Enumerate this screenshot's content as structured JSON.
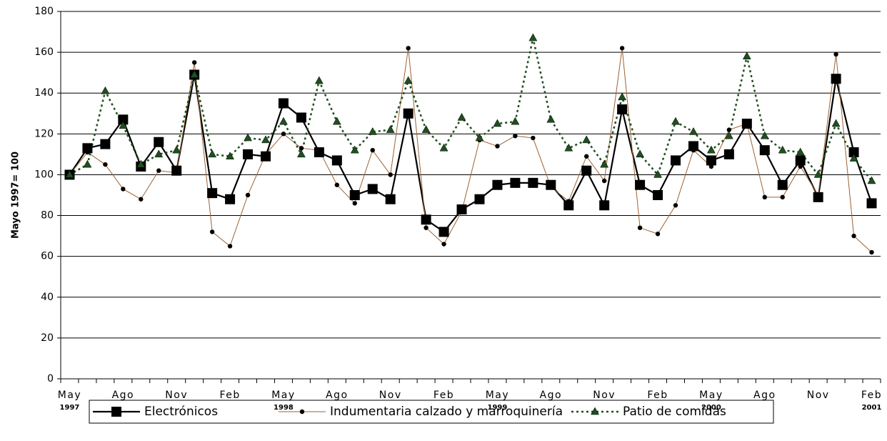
{
  "chart_data": {
    "type": "line",
    "y_label": "Mayo 1997= 100",
    "categories": [
      "May",
      null,
      null,
      "Ago",
      null,
      null,
      "Nov",
      null,
      null,
      "Feb",
      null,
      null,
      "May",
      null,
      null,
      "Ago",
      null,
      null,
      "Nov",
      null,
      null,
      "Feb",
      null,
      null,
      "May",
      null,
      null,
      "Ago",
      null,
      null,
      "Nov",
      null,
      null,
      "Feb",
      null,
      null,
      "May",
      null,
      null,
      "Ago",
      null,
      null,
      "Nov",
      null,
      null,
      "Feb"
    ],
    "year_labels": [
      "1997",
      null,
      null,
      null,
      null,
      null,
      null,
      null,
      null,
      null,
      null,
      null,
      "1998",
      null,
      null,
      null,
      null,
      null,
      null,
      null,
      null,
      null,
      null,
      null,
      "1999",
      null,
      null,
      null,
      null,
      null,
      null,
      null,
      null,
      null,
      null,
      null,
      "2000",
      null,
      null,
      null,
      null,
      null,
      null,
      null,
      null,
      "2001"
    ],
    "series": [
      {
        "name": "Electrónicos",
        "color": "#000000",
        "marker": "square",
        "line_style": "solid",
        "values": [
          100,
          113,
          115,
          127,
          104,
          116,
          102,
          149,
          91,
          88,
          110,
          109,
          135,
          128,
          111,
          107,
          90,
          93,
          88,
          130,
          78,
          72,
          83,
          88,
          95,
          96,
          96,
          95,
          85,
          102,
          85,
          132,
          95,
          90,
          107,
          114,
          107,
          110,
          125,
          112,
          95,
          107,
          89,
          147,
          111,
          86
        ]
      },
      {
        "name": "Indumentaria calzado y marroquinería",
        "color": "#9c6233",
        "marker": "circle",
        "line_style": "thin",
        "values": [
          100,
          111,
          105,
          93,
          88,
          102,
          101,
          155,
          72,
          65,
          90,
          110,
          120,
          113,
          112,
          95,
          86,
          112,
          100,
          162,
          74,
          66,
          82,
          117,
          114,
          119,
          118,
          94,
          87,
          109,
          97,
          162,
          74,
          71,
          85,
          112,
          104,
          122,
          125,
          89,
          89,
          104,
          90,
          159,
          70,
          62
        ]
      },
      {
        "name": "Patio de comidas",
        "color": "#1f4f1f",
        "marker": "triangle",
        "line_style": "dotted",
        "values": [
          100,
          105,
          141,
          124,
          105,
          110,
          112,
          149,
          110,
          109,
          118,
          117,
          126,
          110,
          146,
          126,
          112,
          121,
          122,
          146,
          122,
          113,
          128,
          118,
          125,
          126,
          167,
          127,
          113,
          117,
          105,
          138,
          110,
          100,
          126,
          121,
          112,
          119,
          158,
          119,
          112,
          111,
          100,
          125,
          108,
          97
        ]
      }
    ],
    "ylim": [
      0,
      180
    ],
    "yticks": [
      0,
      20,
      40,
      60,
      80,
      100,
      120,
      140,
      160,
      180
    ],
    "grid": true,
    "legend_position": "bottom"
  }
}
